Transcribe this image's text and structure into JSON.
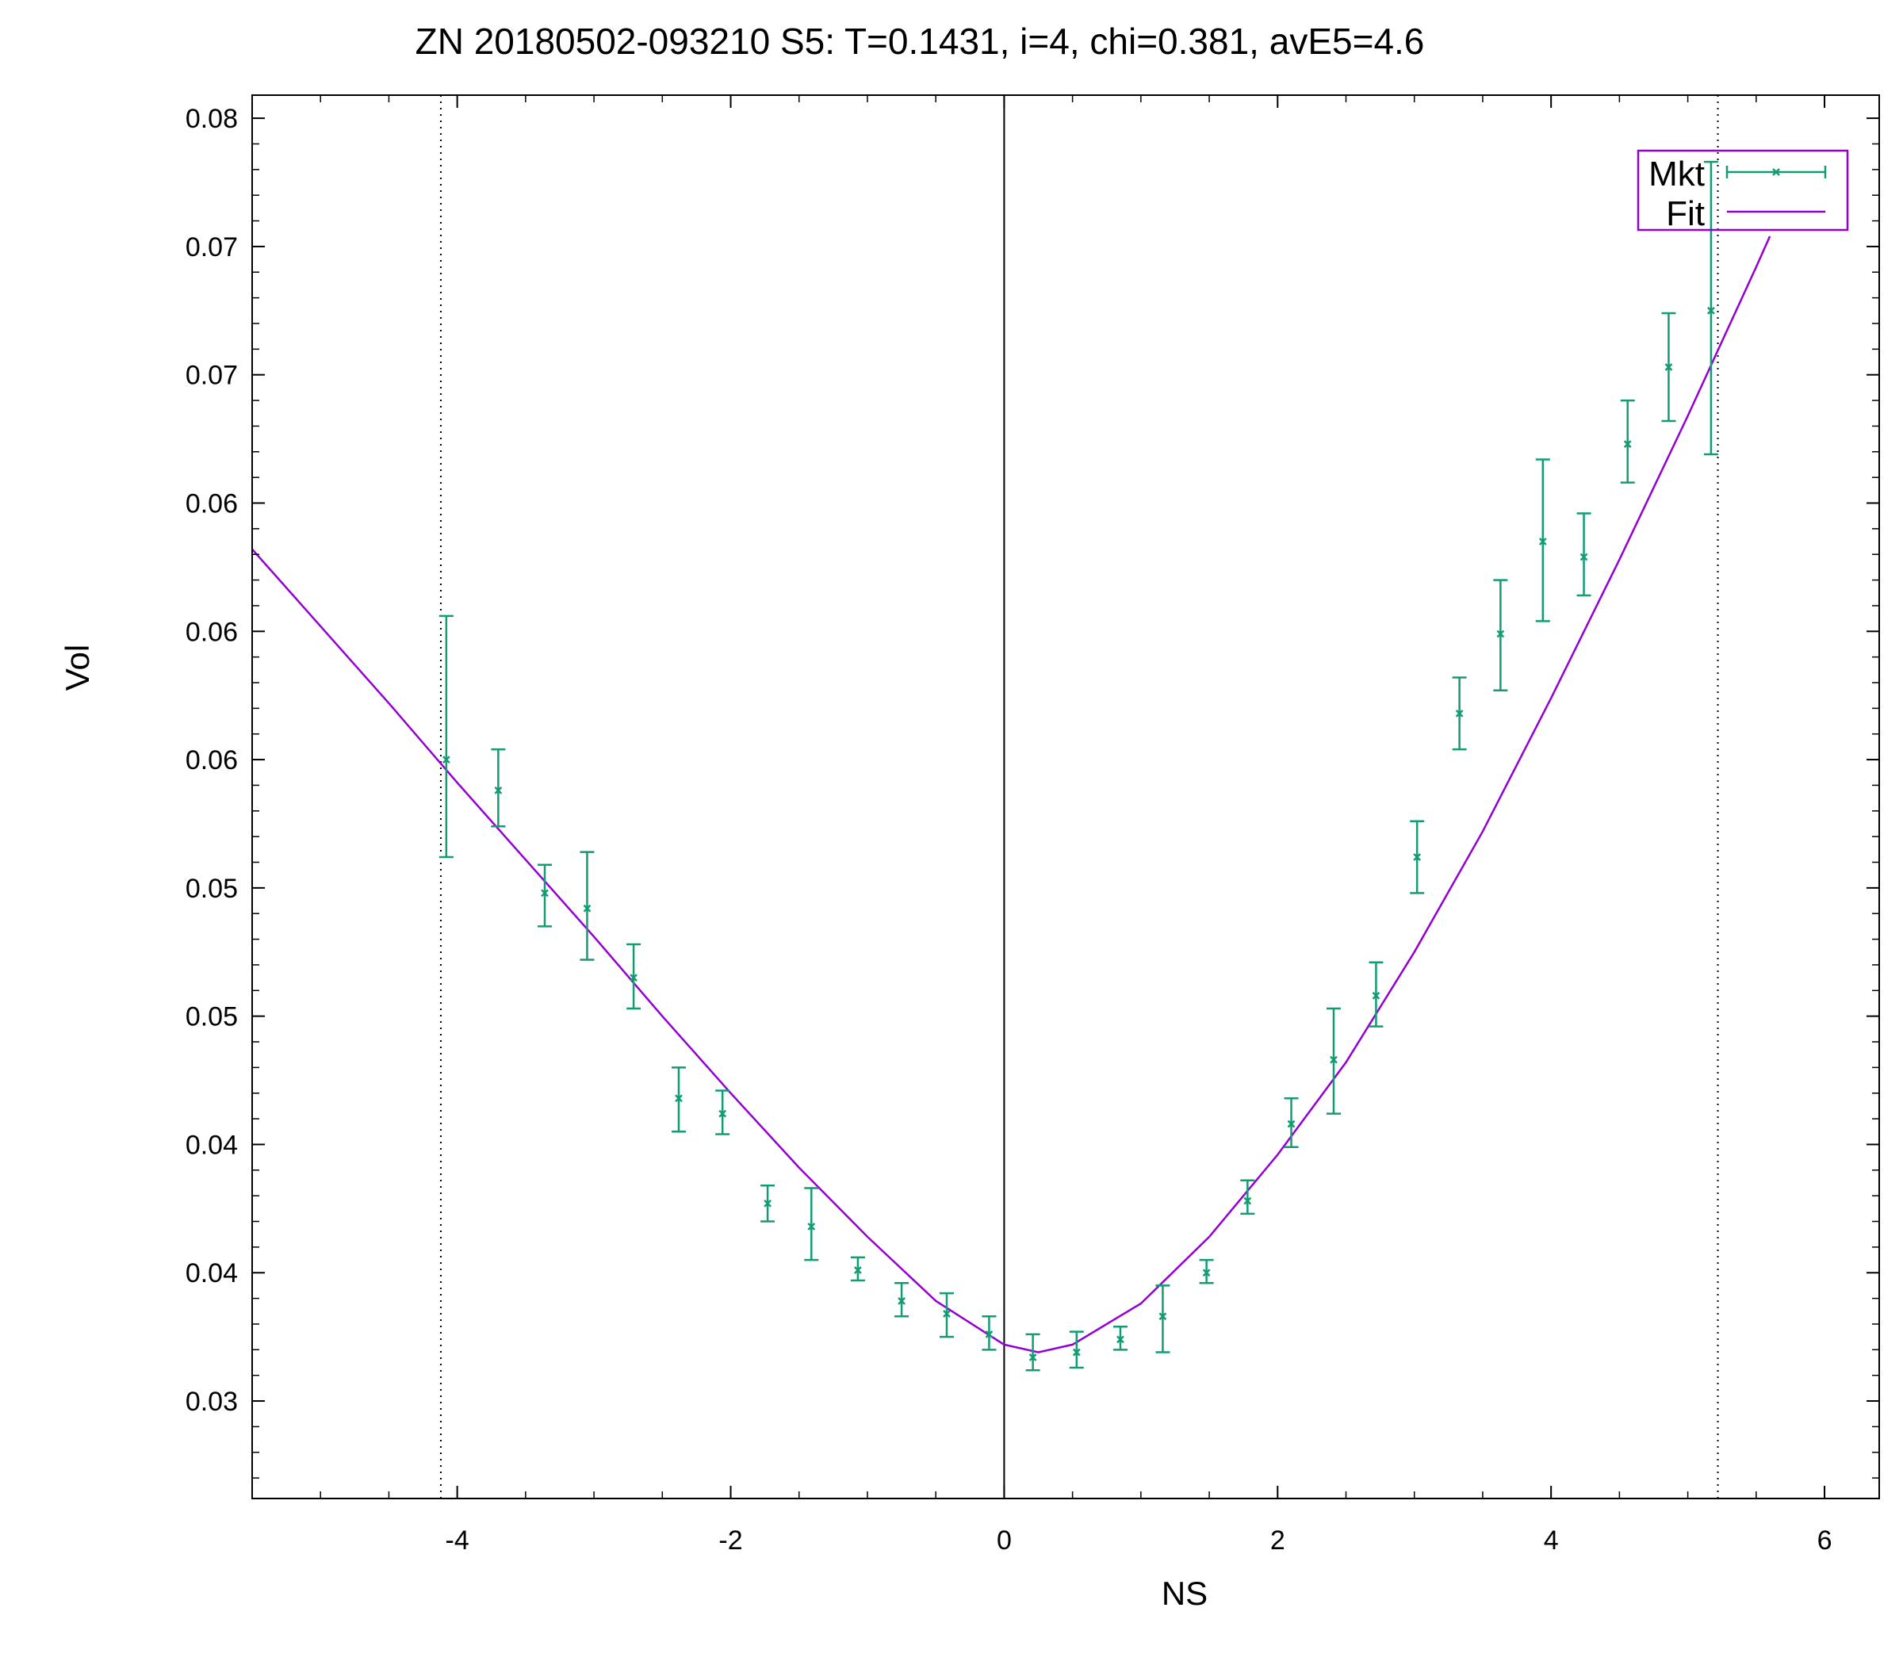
{
  "chart_data": {
    "type": "scatter",
    "title": "ZN 20180502-093210  S5:  T=0.1431, i=4, chi=0.381, avE5=4.6",
    "xlabel": "NS",
    "ylabel": "Vol",
    "xlim": [
      -5.5,
      6.4
    ],
    "ylim": [
      0.0262,
      0.0809
    ],
    "x_ticks": [
      -4,
      -2,
      0,
      2,
      4,
      6
    ],
    "x_tick_labels": [
      "-4",
      "-2",
      "0",
      "2",
      "4",
      "6"
    ],
    "y_ticks": [
      0.03,
      0.035,
      0.04,
      0.045,
      0.05,
      0.055,
      0.06,
      0.065,
      0.07,
      0.075,
      0.08
    ],
    "y_tick_labels": [
      "0.03",
      "0.04",
      "0.04",
      "0.05",
      "0.05",
      "0.06",
      "0.06",
      "0.06",
      "0.07",
      "0.07",
      "0.08"
    ],
    "grid": false,
    "zero_line_x": 0,
    "bound_lines_x": [
      -4.12,
      5.22
    ],
    "legend": {
      "placement": "top-right",
      "entries": [
        "Mkt",
        "Fit"
      ]
    },
    "colors": {
      "market": "#139c74",
      "fit": "#9400d3",
      "frame": "#000000",
      "legend_border": "#9400d3"
    },
    "series": [
      {
        "name": "Mkt",
        "kind": "errorbars",
        "points": [
          {
            "x": -4.08,
            "y": 0.055,
            "lo": 0.0512,
            "hi": 0.0606
          },
          {
            "x": -3.7,
            "y": 0.0538,
            "lo": 0.0524,
            "hi": 0.0554
          },
          {
            "x": -3.36,
            "y": 0.0498,
            "lo": 0.0485,
            "hi": 0.0509
          },
          {
            "x": -3.05,
            "y": 0.0492,
            "lo": 0.0472,
            "hi": 0.0514
          },
          {
            "x": -2.71,
            "y": 0.0465,
            "lo": 0.0453,
            "hi": 0.0478
          },
          {
            "x": -2.38,
            "y": 0.0418,
            "lo": 0.0405,
            "hi": 0.043
          },
          {
            "x": -2.06,
            "y": 0.0412,
            "lo": 0.0404,
            "hi": 0.0421
          },
          {
            "x": -1.73,
            "y": 0.0377,
            "lo": 0.037,
            "hi": 0.0384
          },
          {
            "x": -1.41,
            "y": 0.0368,
            "lo": 0.0355,
            "hi": 0.0383
          },
          {
            "x": -1.07,
            "y": 0.0351,
            "lo": 0.0347,
            "hi": 0.0356
          },
          {
            "x": -0.75,
            "y": 0.0339,
            "lo": 0.0333,
            "hi": 0.0346
          },
          {
            "x": -0.42,
            "y": 0.0334,
            "lo": 0.0325,
            "hi": 0.0342
          },
          {
            "x": -0.11,
            "y": 0.0326,
            "lo": 0.032,
            "hi": 0.0333
          },
          {
            "x": 0.21,
            "y": 0.0317,
            "lo": 0.0312,
            "hi": 0.0326
          },
          {
            "x": 0.53,
            "y": 0.0319,
            "lo": 0.0313,
            "hi": 0.0327
          },
          {
            "x": 0.85,
            "y": 0.0324,
            "lo": 0.032,
            "hi": 0.0329
          },
          {
            "x": 1.16,
            "y": 0.0333,
            "lo": 0.0319,
            "hi": 0.0345
          },
          {
            "x": 1.48,
            "y": 0.035,
            "lo": 0.0346,
            "hi": 0.0355
          },
          {
            "x": 1.78,
            "y": 0.0378,
            "lo": 0.0373,
            "hi": 0.0386
          },
          {
            "x": 2.1,
            "y": 0.0408,
            "lo": 0.0399,
            "hi": 0.0418
          },
          {
            "x": 2.41,
            "y": 0.0433,
            "lo": 0.0412,
            "hi": 0.0453
          },
          {
            "x": 2.72,
            "y": 0.0458,
            "lo": 0.0446,
            "hi": 0.0471
          },
          {
            "x": 3.02,
            "y": 0.0512,
            "lo": 0.0498,
            "hi": 0.0526
          },
          {
            "x": 3.33,
            "y": 0.0568,
            "lo": 0.0554,
            "hi": 0.0582
          },
          {
            "x": 3.63,
            "y": 0.0599,
            "lo": 0.0577,
            "hi": 0.062
          },
          {
            "x": 3.94,
            "y": 0.0635,
            "lo": 0.0604,
            "hi": 0.0667
          },
          {
            "x": 4.24,
            "y": 0.0629,
            "lo": 0.0614,
            "hi": 0.0646
          },
          {
            "x": 4.56,
            "y": 0.0673,
            "lo": 0.0658,
            "hi": 0.069
          },
          {
            "x": 4.86,
            "y": 0.0703,
            "lo": 0.0682,
            "hi": 0.0724
          },
          {
            "x": 5.17,
            "y": 0.0725,
            "lo": 0.0669,
            "hi": 0.0783
          }
        ]
      },
      {
        "name": "Fit",
        "kind": "line",
        "x": [
          -5.5,
          -5.0,
          -4.5,
          -4.0,
          -3.5,
          -3.0,
          -2.5,
          -2.0,
          -1.5,
          -1.0,
          -0.5,
          0.0,
          0.25,
          0.5,
          1.0,
          1.5,
          2.0,
          2.5,
          3.0,
          3.5,
          4.0,
          4.5,
          5.0,
          5.5,
          5.6
        ],
        "y": [
          0.0632,
          0.0602,
          0.0572,
          0.0541,
          0.0511,
          0.0481,
          0.045,
          0.042,
          0.0391,
          0.0364,
          0.0339,
          0.0322,
          0.0319,
          0.0322,
          0.0338,
          0.0364,
          0.0396,
          0.0432,
          0.0475,
          0.0522,
          0.0574,
          0.0628,
          0.0684,
          0.0742,
          0.0754
        ]
      }
    ]
  }
}
